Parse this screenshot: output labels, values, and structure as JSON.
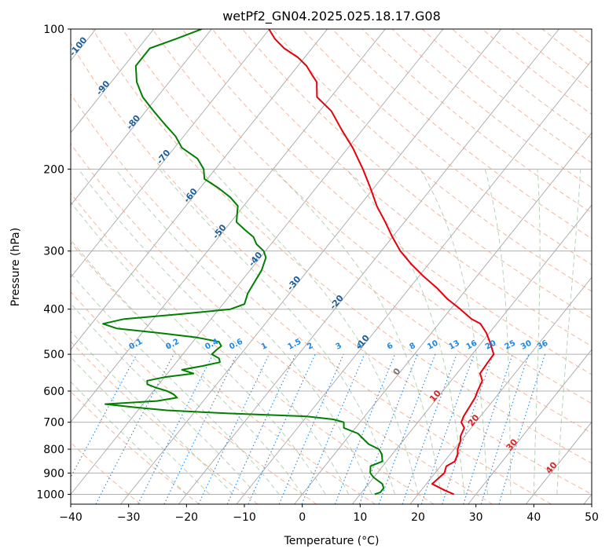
{
  "chart_data": {
    "type": "line",
    "title": "wetPf2_GN04.2025.025.18.17.G08",
    "xlabel": "Temperature (°C)",
    "ylabel": "Pressure (hPa)",
    "xlim": [
      -40,
      50
    ],
    "ylim": [
      1050,
      100
    ],
    "y_scale": "log",
    "x_ticks": [
      "−40",
      "−30",
      "−20",
      "−10",
      "0",
      "10",
      "20",
      "30",
      "40",
      "50"
    ],
    "y_ticks": [
      "100",
      "200",
      "300",
      "400",
      "500",
      "600",
      "700",
      "800",
      "900",
      "1000"
    ],
    "grid": true,
    "colors": {
      "temperature": "#e8000b",
      "dewpoint": "#008000",
      "dry_adiabat": "#f4a582",
      "moist_adiabat": "#8fbc8f",
      "mixing_ratio": "#1e88e5",
      "isotherm_label": "#1f5f99",
      "isotherm_label_warm": "#d62728"
    },
    "isotherm_labels": [
      "-100",
      "-90",
      "-80",
      "-70",
      "-60",
      "-50",
      "-40",
      "-30",
      "-20",
      "-10",
      "0",
      "10",
      "20",
      "30",
      "40"
    ],
    "mixing_ratio_labels": [
      "0.1",
      "0.2",
      "0.4",
      "0.6",
      "1",
      "1.5",
      "2",
      "3",
      "4",
      "6",
      "8",
      "10",
      "13",
      "16",
      "20",
      "25",
      "30",
      "36"
    ],
    "series": [
      {
        "id": "temperature",
        "pressure": [
          1000,
          980,
          950,
          925,
          900,
          870,
          850,
          820,
          800,
          770,
          750,
          720,
          700,
          680,
          650,
          620,
          600,
          570,
          550,
          520,
          500,
          470,
          450,
          430,
          420,
          400,
          380,
          360,
          340,
          320,
          300,
          280,
          260,
          240,
          220,
          200,
          180,
          165,
          150,
          140,
          130,
          125,
          120,
          115,
          110,
          105,
          100
        ],
        "values": [
          26.2,
          24.0,
          21.0,
          21.3,
          21.6,
          21.0,
          21.8,
          21.3,
          20.6,
          20.0,
          19.3,
          18.8,
          17.5,
          17.1,
          16.8,
          16.5,
          16.0,
          15.4,
          14.0,
          13.8,
          13.7,
          11.3,
          9.5,
          7.2,
          5.0,
          1.7,
          -2.0,
          -5.3,
          -9.2,
          -13.0,
          -16.7,
          -20.0,
          -23.3,
          -27.0,
          -30.5,
          -34.5,
          -39.2,
          -43.5,
          -48.0,
          -52.4,
          -54.5,
          -56.5,
          -58.5,
          -61.2,
          -64.8,
          -67.7,
          -70.1
        ]
      },
      {
        "id": "dewpoint",
        "pressure": [
          1000,
          990,
          970,
          950,
          920,
          900,
          870,
          850,
          820,
          800,
          780,
          740,
          720,
          700,
          690,
          680,
          670,
          660,
          650,
          640,
          630,
          620,
          610,
          600,
          590,
          580,
          570,
          560,
          550,
          540,
          530,
          520,
          510,
          500,
          490,
          480,
          470,
          460,
          450,
          440,
          430,
          420,
          410,
          400,
          390,
          370,
          350,
          330,
          310,
          300,
          290,
          280,
          270,
          260,
          250,
          240,
          230,
          220,
          210,
          200,
          190,
          180,
          170,
          160,
          150,
          140,
          130,
          120,
          110,
          105,
          100
        ],
        "values": [
          12.5,
          13.2,
          13.2,
          12.4,
          10.0,
          8.8,
          7.9,
          9.3,
          8.2,
          7.0,
          4.5,
          1.2,
          -2.0,
          -2.8,
          -5.0,
          -10.0,
          -24.0,
          -35.0,
          -41.0,
          -46.5,
          -38.0,
          -35.0,
          -36.0,
          -37.6,
          -40.0,
          -42.0,
          -42.5,
          -40.0,
          -35.5,
          -38.0,
          -35.0,
          -32.5,
          -33.2,
          -35.0,
          -34.8,
          -34.5,
          -35.5,
          -40.0,
          -47.0,
          -55.0,
          -58.0,
          -55.0,
          -46.0,
          -38.0,
          -36.3,
          -37.2,
          -37.6,
          -38.0,
          -39.0,
          -40.3,
          -42.5,
          -44.0,
          -46.5,
          -49.0,
          -50.0,
          -51.0,
          -53.5,
          -56.7,
          -60.5,
          -62.0,
          -64.5,
          -68.7,
          -71.4,
          -75.0,
          -78.7,
          -82.5,
          -85.6,
          -88.0,
          -88.0,
          -84.8,
          -81.7
        ]
      }
    ]
  }
}
